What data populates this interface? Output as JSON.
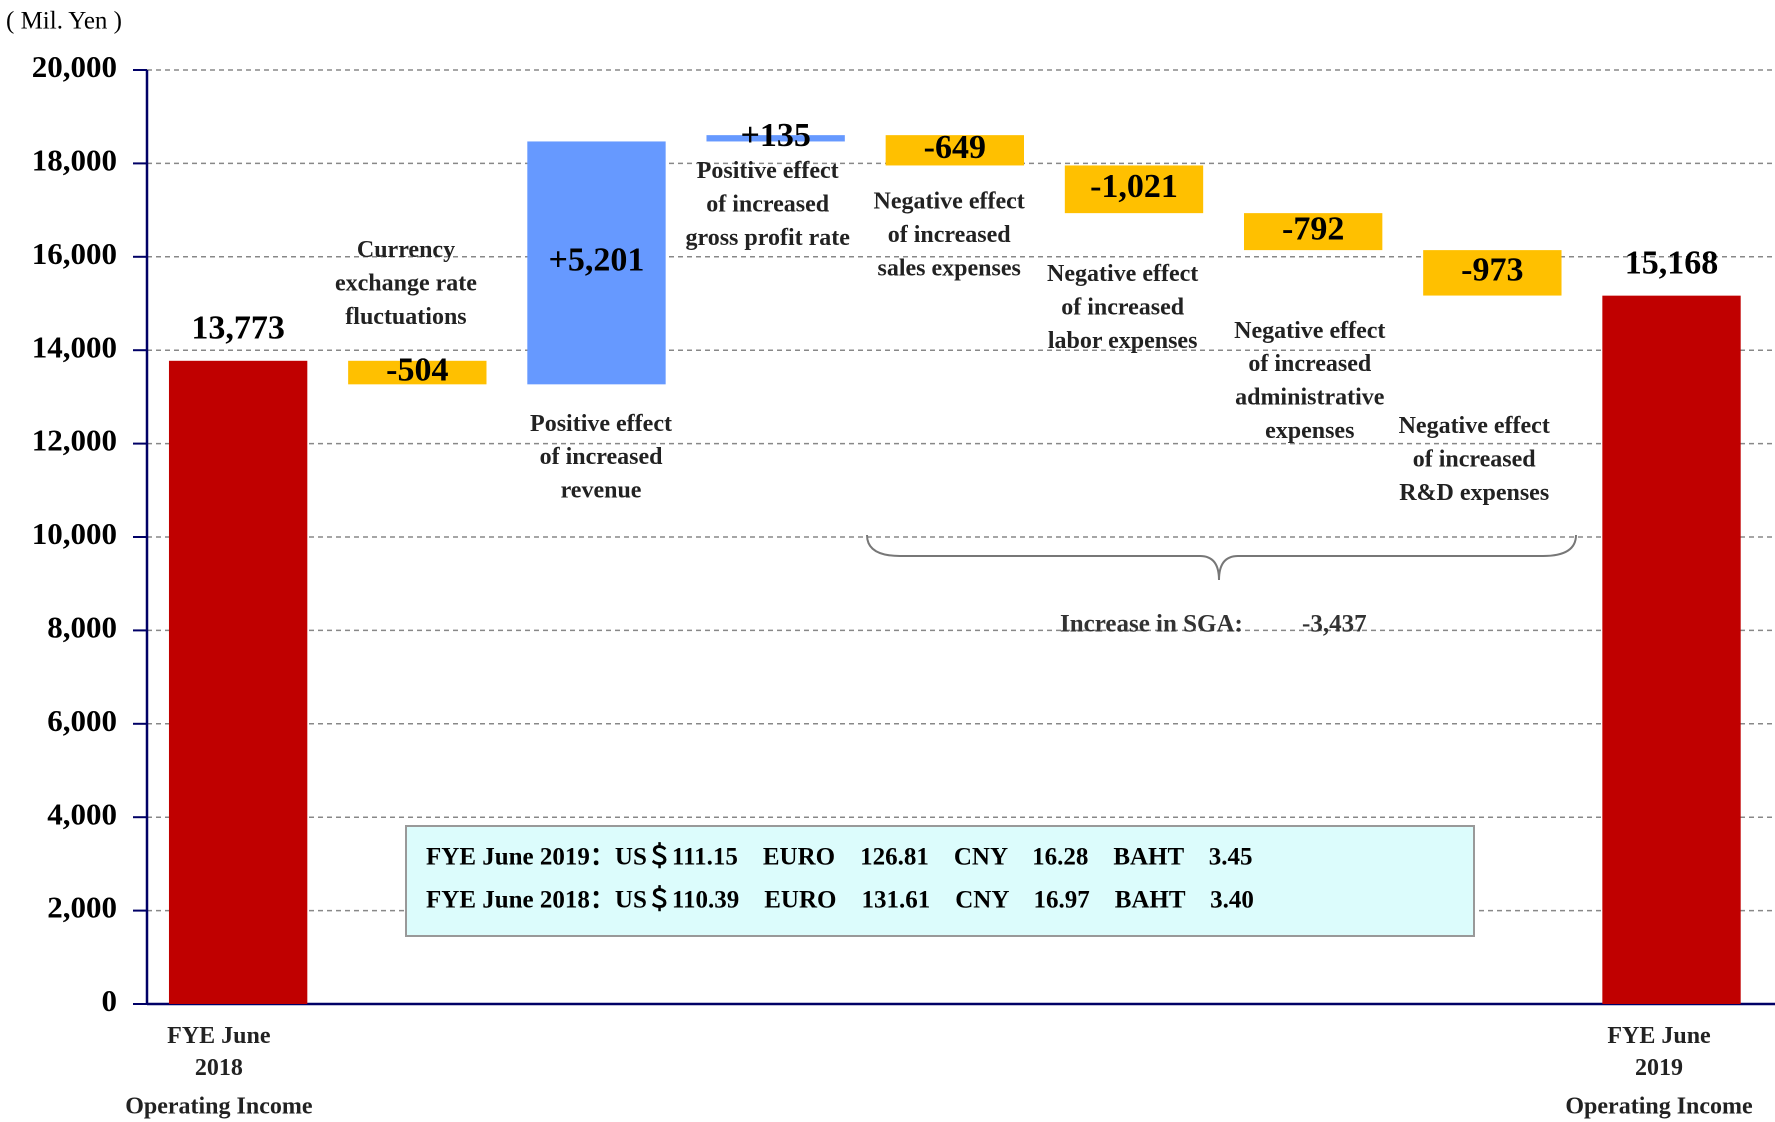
{
  "chart_data": {
    "type": "waterfall",
    "ylabel": "( Mil. Yen )",
    "categories": [
      [
        "FYE June",
        "2018",
        "Operating Income"
      ],
      [
        "Currency",
        "exchange rate",
        "fluctuations"
      ],
      [
        "Positive effect",
        "of increased",
        "revenue"
      ],
      [
        "Positive effect",
        "of increased",
        "gross profit rate"
      ],
      [
        "Negative effect",
        "of increased",
        "sales expenses"
      ],
      [
        "Negative effect",
        "of increased",
        "labor expenses"
      ],
      [
        "Negative effect",
        "of increased",
        "administrative",
        "expenses"
      ],
      [
        "Negative effect",
        "of increased",
        "R&D expenses"
      ],
      [
        "FYE June",
        "2019",
        "Operating Income"
      ]
    ],
    "values": [
      13773,
      -504,
      5201,
      135,
      -649,
      -1021,
      -792,
      -973,
      15168
    ],
    "value_labels": [
      "13,773",
      "-504",
      "+5,201",
      "+135",
      "-649",
      "-1,021",
      "-792",
      "-973",
      "15,168"
    ],
    "measure": [
      "absolute",
      "relative",
      "relative",
      "relative",
      "relative",
      "relative",
      "relative",
      "relative",
      "absolute"
    ],
    "colors": {
      "total": "#c00000",
      "increase": "#6699ff",
      "decrease": "#ffc000"
    },
    "ylim": [
      0,
      20000
    ],
    "yticks": [
      0,
      {
        "value": 2000,
        "label": "2,000"
      },
      {
        "value": 4000,
        "label": "4,000"
      },
      {
        "value": 6000,
        "label": "6,000"
      },
      {
        "value": 8000,
        "label": "8,000"
      },
      {
        "value": 10000,
        "label": "10,000"
      },
      {
        "value": 12000,
        "label": "12,000"
      },
      {
        "value": 14000,
        "label": "14,000"
      },
      {
        "value": 16000,
        "label": "16,000"
      },
      {
        "value": 18000,
        "label": "18,000"
      },
      {
        "value": 20000,
        "label": "20,000"
      }
    ],
    "grid": true,
    "annotation": {
      "text": "Increase in SGA:",
      "value": "-3,437"
    },
    "notes": [
      "FYE June 2019：US＄111.15　EURO　126.81　CNY　16.28　BAHT　3.45",
      "FYE June 2018：US＄110.39　EURO　131.61　CNY　16.97　BAHT　3.40"
    ]
  }
}
